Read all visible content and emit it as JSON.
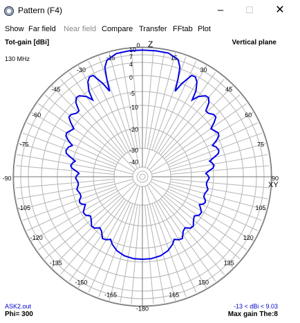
{
  "window": {
    "title": "Pattern   (F4)",
    "icon": "pattern-app-icon",
    "controls": {
      "minimize": "–",
      "maximize": "☐",
      "close": "✕"
    }
  },
  "menu": [
    {
      "label": "Show",
      "enabled": true
    },
    {
      "label": "Far field",
      "enabled": true
    },
    {
      "label": "Near field",
      "enabled": false
    },
    {
      "label": "Compare",
      "enabled": true
    },
    {
      "label": "Transfer",
      "enabled": true
    },
    {
      "label": "FFtab",
      "enabled": true
    },
    {
      "label": "Plot",
      "enabled": true
    }
  ],
  "plot": {
    "top_left_label": "Tot-gain [dBi]",
    "top_right_label": "Vertical plane",
    "frequency": "130 MHz",
    "file": "ASK2.out",
    "phi": "Phi= 300",
    "range_info": "-13 < dBi < 9.03",
    "max_gain": "Max gain The:8",
    "axis_z": "Z",
    "axis_xy": "XY",
    "colors": {
      "trace": "#0000e6",
      "grid": "#b4b4b4",
      "blue_text": "#0000cc"
    }
  },
  "chart_data": {
    "type": "polar",
    "title": "",
    "angles_deg": [
      0,
      15,
      30,
      45,
      60,
      75,
      90,
      105,
      120,
      135,
      150,
      165,
      180,
      -165,
      -150,
      -135,
      -120,
      -105,
      -90,
      -75,
      -60,
      -45,
      -30,
      -15
    ],
    "angle_labels": [
      "0",
      "15",
      "30",
      "45",
      "60",
      "75",
      "90",
      "105",
      "120",
      "135",
      "150",
      "165",
      "-180",
      "-165",
      "-150",
      "-135",
      "-120",
      "-105",
      "-90",
      "-75",
      "-60",
      "-45",
      "-30",
      "-15"
    ],
    "radial_labels": [
      "10",
      "7",
      "4",
      "0",
      "-5",
      "-10",
      "-20",
      "-30",
      "-40"
    ],
    "radial_values": [
      10,
      7,
      4,
      0,
      -5,
      -10,
      -20,
      -30,
      -40
    ],
    "series": [
      {
        "points": [
          [
            -17,
            6.9
          ],
          [
            -12,
            8.7
          ],
          [
            -6,
            9.0
          ],
          [
            0,
            9.0
          ],
          [
            6,
            9.0
          ],
          [
            12,
            8.9
          ],
          [
            17,
            7.2
          ],
          [
            19,
            4.5
          ],
          [
            20,
            1.0
          ],
          [
            21,
            -3.0
          ],
          [
            23,
            0.0
          ],
          [
            26,
            3.5
          ],
          [
            28,
            3.6
          ],
          [
            30,
            2.5
          ],
          [
            32,
            0.0
          ],
          [
            33,
            -3.0
          ],
          [
            35,
            -1.0
          ],
          [
            38,
            0.5
          ],
          [
            40,
            0.6
          ],
          [
            42,
            -0.5
          ],
          [
            44,
            -3.0
          ],
          [
            46,
            -3.0
          ],
          [
            49,
            -2.0
          ],
          [
            51,
            -2.0
          ],
          [
            53,
            -3.5
          ],
          [
            55,
            -5.5
          ],
          [
            57,
            -5.0
          ],
          [
            60,
            -4.2
          ],
          [
            62,
            -4.5
          ],
          [
            64,
            -6.0
          ],
          [
            66,
            -8.0
          ],
          [
            68,
            -7.0
          ],
          [
            71,
            -6.5
          ],
          [
            73,
            -7.0
          ],
          [
            75,
            -9.0
          ],
          [
            77,
            -11.0
          ],
          [
            79,
            -10.0
          ],
          [
            81,
            -9.5
          ],
          [
            83,
            -10.0
          ],
          [
            85,
            -12.0
          ],
          [
            87,
            -13.5
          ],
          [
            89,
            -12.5
          ],
          [
            91,
            -12.0
          ],
          [
            93,
            -12.5
          ],
          [
            95,
            -13.0
          ],
          [
            97,
            -13.0
          ],
          [
            99,
            -12.5
          ],
          [
            101,
            -12.0
          ],
          [
            103,
            -12.5
          ],
          [
            105,
            -13.0
          ],
          [
            108,
            -13.0
          ],
          [
            110,
            -12.0
          ],
          [
            112,
            -11.5
          ],
          [
            114,
            -12.0
          ],
          [
            116,
            -13.5
          ],
          [
            118,
            -12.5
          ],
          [
            121,
            -11.0
          ],
          [
            124,
            -11.2
          ],
          [
            127,
            -12.8
          ],
          [
            130,
            -12.0
          ],
          [
            134,
            -10.2
          ],
          [
            137,
            -10.5
          ],
          [
            140,
            -12.2
          ],
          [
            143,
            -11.5
          ],
          [
            147,
            -9.2
          ],
          [
            150,
            -9.5
          ],
          [
            153,
            -10.5
          ],
          [
            156,
            -9.0
          ],
          [
            161,
            -7.5
          ],
          [
            167,
            -6.5
          ],
          [
            174,
            -6.0
          ],
          [
            180,
            -6.0
          ],
          [
            186,
            -6.0
          ],
          [
            193,
            -6.5
          ],
          [
            199,
            -7.5
          ],
          [
            204,
            -9.0
          ],
          [
            207,
            -10.5
          ],
          [
            210,
            -9.5
          ],
          [
            213,
            -9.2
          ],
          [
            217,
            -11.5
          ],
          [
            220,
            -12.2
          ],
          [
            223,
            -10.5
          ],
          [
            226,
            -10.2
          ],
          [
            230,
            -12.0
          ],
          [
            233,
            -12.8
          ],
          [
            236,
            -11.2
          ],
          [
            239,
            -11.0
          ],
          [
            242,
            -12.5
          ],
          [
            244,
            -13.5
          ],
          [
            246,
            -12.0
          ],
          [
            248,
            -11.5
          ],
          [
            250,
            -12.0
          ],
          [
            252,
            -13.0
          ],
          [
            255,
            -13.0
          ],
          [
            257,
            -12.5
          ],
          [
            259,
            -12.0
          ],
          [
            261,
            -12.5
          ],
          [
            263,
            -13.0
          ],
          [
            265,
            -13.0
          ],
          [
            267,
            -12.5
          ],
          [
            269,
            -12.0
          ],
          [
            271,
            -12.5
          ],
          [
            273,
            -13.5
          ],
          [
            275,
            -12.0
          ],
          [
            277,
            -10.0
          ],
          [
            279,
            -9.5
          ],
          [
            281,
            -10.0
          ],
          [
            283,
            -11.0
          ],
          [
            285,
            -9.0
          ],
          [
            287,
            -7.0
          ],
          [
            289,
            -6.5
          ],
          [
            292,
            -7.0
          ],
          [
            294,
            -8.0
          ],
          [
            296,
            -6.0
          ],
          [
            298,
            -4.5
          ],
          [
            300,
            -4.2
          ],
          [
            303,
            -5.0
          ],
          [
            305,
            -5.5
          ],
          [
            307,
            -3.5
          ],
          [
            309,
            -2.0
          ],
          [
            311,
            -2.0
          ],
          [
            314,
            -3.0
          ],
          [
            316,
            -3.0
          ],
          [
            318,
            -0.5
          ],
          [
            320,
            0.6
          ],
          [
            322,
            0.5
          ],
          [
            325,
            -1.0
          ],
          [
            327,
            -3.0
          ],
          [
            328,
            0.0
          ],
          [
            330,
            2.5
          ],
          [
            332,
            3.6
          ],
          [
            334,
            3.5
          ],
          [
            337,
            0.0
          ],
          [
            339,
            -3.0
          ],
          [
            340,
            1.0
          ],
          [
            341,
            4.5
          ],
          [
            343,
            6.9
          ]
        ]
      }
    ],
    "grid": true,
    "legend": "none"
  }
}
